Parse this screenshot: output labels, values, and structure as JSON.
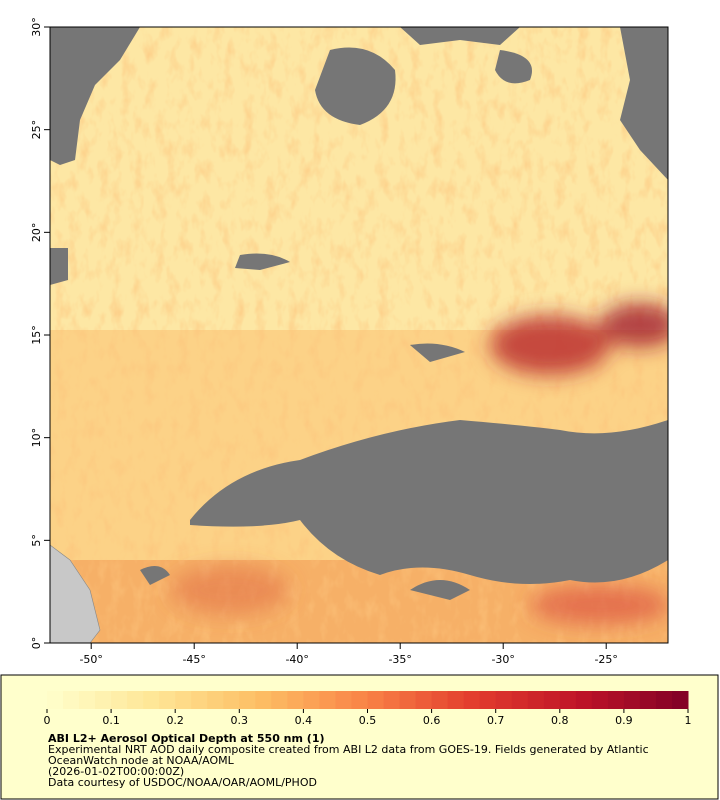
{
  "map": {
    "xlim": [
      -52,
      -22
    ],
    "ylim": [
      0,
      30
    ],
    "xticks": [
      {
        "value": -50,
        "label": "-50°"
      },
      {
        "value": -45,
        "label": "-45°"
      },
      {
        "value": -40,
        "label": "-40°"
      },
      {
        "value": -35,
        "label": "-35°"
      },
      {
        "value": -30,
        "label": "-30°"
      },
      {
        "value": -25,
        "label": "-25°"
      }
    ],
    "yticks": [
      {
        "value": 0,
        "label": "0°"
      },
      {
        "value": 5,
        "label": "5°"
      },
      {
        "value": 10,
        "label": "10°"
      },
      {
        "value": 15,
        "label": "15°"
      },
      {
        "value": 20,
        "label": "20°"
      },
      {
        "value": 25,
        "label": "25°"
      },
      {
        "value": 30,
        "label": "30°"
      }
    ]
  },
  "colorbar": {
    "range": [
      0,
      1
    ],
    "ticks": [
      0,
      0.1,
      0.2,
      0.3,
      0.4,
      0.5,
      0.6,
      0.7,
      0.8,
      0.9,
      1
    ]
  },
  "legend": {
    "title": "ABI L2+ Aerosol Optical Depth at 550 nm (1)",
    "lines": [
      "Experimental NRT AOD daily composite created from ABI L2 data from GOES-19. Fields generated by Atlantic",
      "OceanWatch node at NOAA/AOML",
      "(2026-01-02T00:00:00Z)",
      "Data courtesy of USDOC/NOAA/OAR/AOML/PHOD"
    ]
  }
}
